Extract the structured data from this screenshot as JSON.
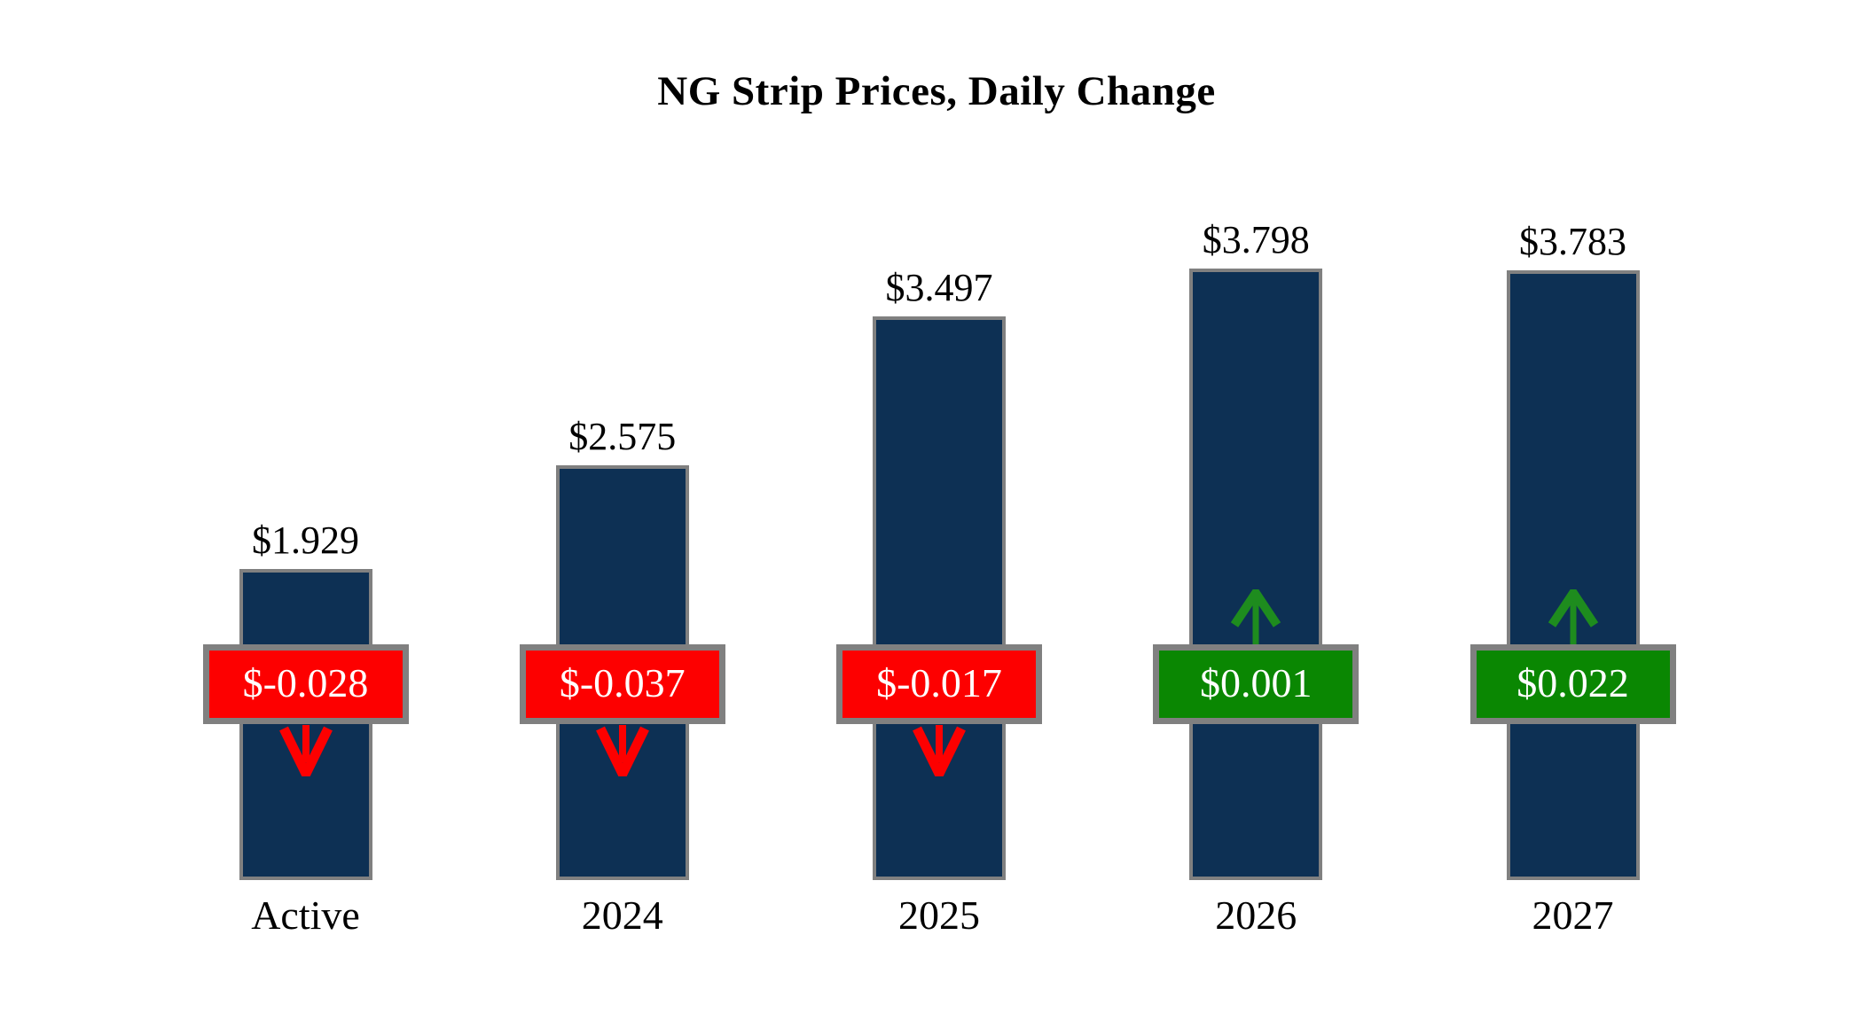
{
  "chart_data": {
    "type": "bar",
    "title": "NG Strip Prices, Daily Change",
    "categories": [
      "Active",
      "2024",
      "2025",
      "2026",
      "2027"
    ],
    "series": [
      {
        "name": "Strip Price",
        "values": [
          1.929,
          2.575,
          3.497,
          3.798,
          3.783
        ],
        "labels": [
          "$1.929",
          "$2.575",
          "$3.497",
          "$3.798",
          "$3.783"
        ]
      },
      {
        "name": "Daily Change",
        "values": [
          -0.028,
          -0.037,
          -0.017,
          0.001,
          0.022
        ],
        "labels": [
          "$-0.028",
          "$-0.037",
          "$-0.017",
          "$0.001",
          "$0.022"
        ],
        "directions": [
          "down",
          "down",
          "down",
          "up",
          "up"
        ]
      }
    ],
    "xlabel": "",
    "ylabel": "",
    "ylim": [
      0,
      3.798
    ],
    "grid": false,
    "legend": "none",
    "axes_visible": false,
    "colors": {
      "bar_fill": "#0d3054",
      "bar_border": "#808080",
      "badge_border": "#808080",
      "badge_text": "#ffffff",
      "negative_badge": "#fd0000",
      "negative_arrow": "#fd0000",
      "positive_badge": "#0a8702",
      "positive_arrow": "#1e8c1e",
      "label_text": "#000000",
      "background": "#ffffff"
    }
  }
}
